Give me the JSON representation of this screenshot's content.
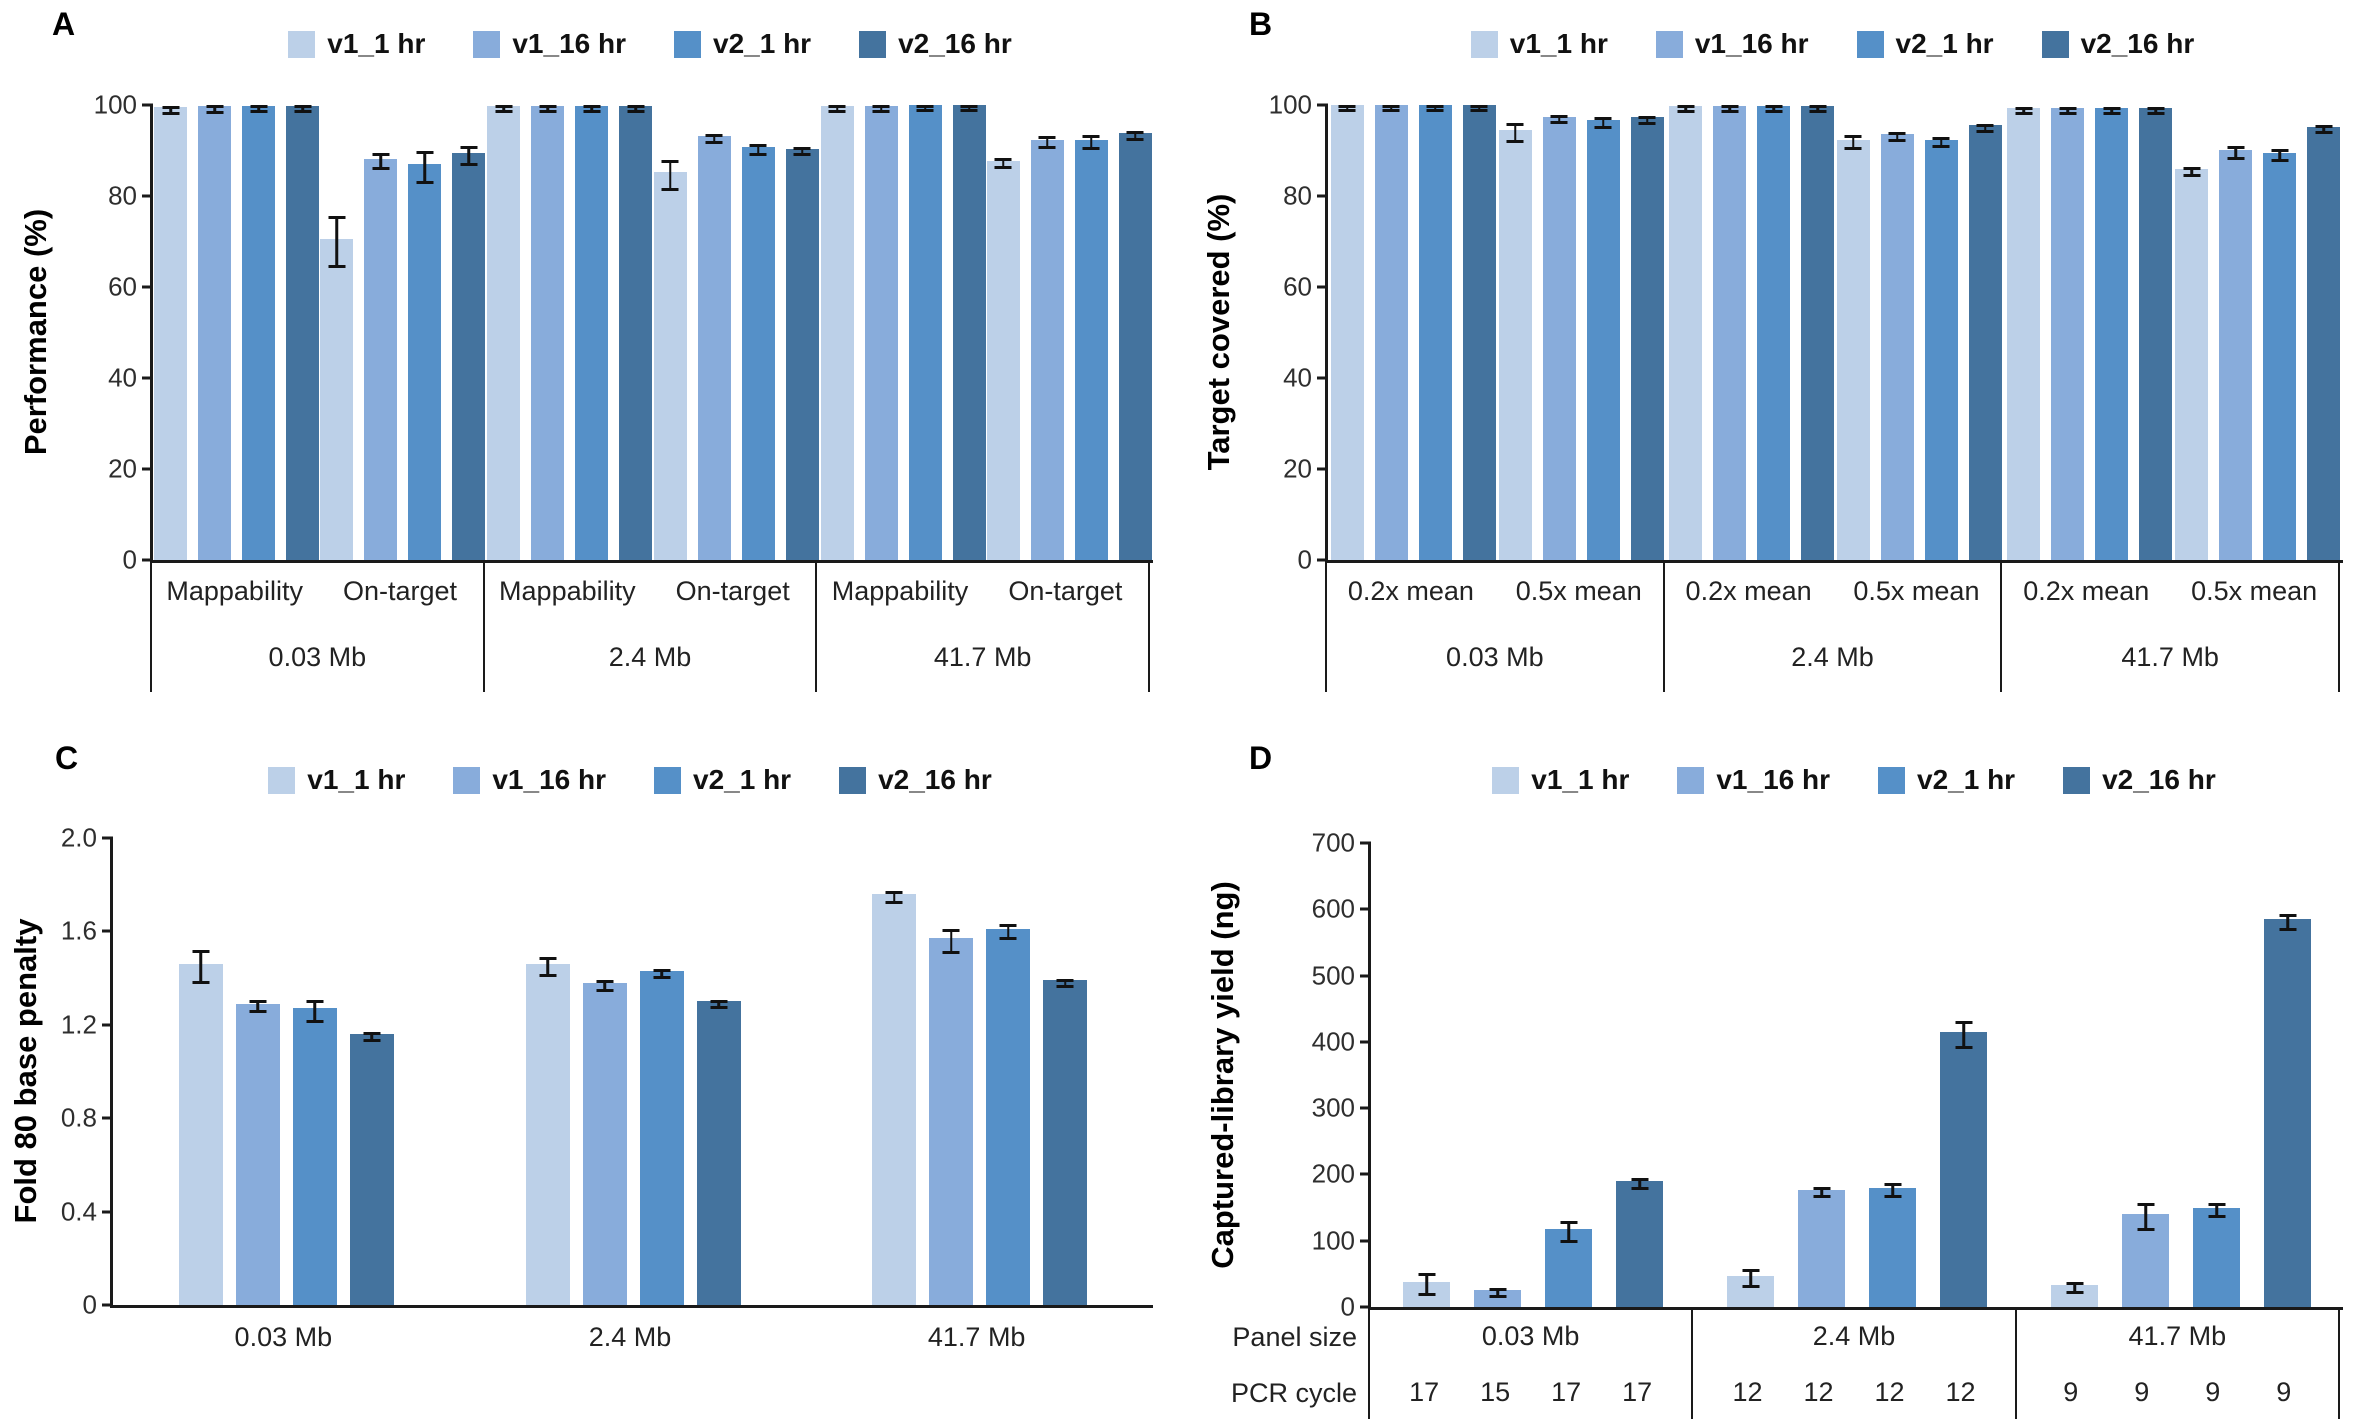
{
  "figure": {
    "background": "#ffffff",
    "error_bar_color": "#111111"
  },
  "series": [
    {
      "name": "v1_1 hr",
      "color": "#bcd0e8"
    },
    {
      "name": "v1_16 hr",
      "color": "#88acdb"
    },
    {
      "name": "v2_1 hr",
      "color": "#5590c8"
    },
    {
      "name": "v2_16 hr",
      "color": "#44739e"
    }
  ],
  "chart_data": [
    {
      "letter": "A",
      "type": "bar",
      "y_axis_title": "Performance (%)",
      "ylim": [
        0,
        100
      ],
      "yticks": [
        "0",
        "20",
        "40",
        "60",
        "80",
        "100"
      ],
      "legend_position": "top-center",
      "grid": false,
      "panels": [
        {
          "label": "0.03 Mb",
          "groups": [
            {
              "label": "Mappability",
              "values": [
                99.5,
                99.7,
                99.8,
                99.8
              ],
              "errors": [
                0.3,
                0.3,
                0.3,
                0.3
              ]
            },
            {
              "label": "On-target",
              "values": [
                70.5,
                88.2,
                87.0,
                89.5
              ],
              "errors": [
                5.0,
                1.2,
                3.0,
                1.5
              ]
            }
          ]
        },
        {
          "label": "2.4 Mb",
          "groups": [
            {
              "label": "Mappability",
              "values": [
                99.7,
                99.8,
                99.8,
                99.8
              ],
              "errors": [
                0.2,
                0.2,
                0.2,
                0.2
              ]
            },
            {
              "label": "On-target",
              "values": [
                85.2,
                93.2,
                90.8,
                90.4
              ],
              "errors": [
                2.8,
                0.5,
                0.6,
                0.4
              ]
            }
          ]
        },
        {
          "label": "41.7 Mb",
          "groups": [
            {
              "label": "Mappability",
              "values": [
                99.8,
                99.8,
                99.9,
                99.9
              ],
              "errors": [
                0.2,
                0.2,
                0.2,
                0.2
              ]
            },
            {
              "label": "On-target",
              "values": [
                87.8,
                92.4,
                92.4,
                93.8
              ],
              "errors": [
                0.6,
                0.8,
                1.0,
                0.4
              ]
            }
          ]
        }
      ]
    },
    {
      "letter": "B",
      "type": "bar",
      "y_axis_title": "Target covered (%)",
      "ylim": [
        0,
        100
      ],
      "yticks": [
        "0",
        "20",
        "40",
        "60",
        "80",
        "100"
      ],
      "legend_position": "top-center",
      "grid": false,
      "panels": [
        {
          "label": "0.03 Mb",
          "groups": [
            {
              "label": "0.2x mean",
              "values": [
                99.9,
                99.9,
                99.9,
                99.9
              ],
              "errors": [
                0.15,
                0.15,
                0.15,
                0.15
              ]
            },
            {
              "label": "0.5x mean",
              "values": [
                94.5,
                97.4,
                96.7,
                97.3
              ],
              "errors": [
                1.6,
                0.3,
                0.6,
                0.3
              ]
            }
          ]
        },
        {
          "label": "2.4 Mb",
          "groups": [
            {
              "label": "0.2x mean",
              "values": [
                99.8,
                99.8,
                99.8,
                99.8
              ],
              "errors": [
                0.15,
                0.15,
                0.15,
                0.15
              ]
            },
            {
              "label": "0.5x mean",
              "values": [
                92.4,
                93.6,
                92.4,
                95.5
              ],
              "errors": [
                1.0,
                0.4,
                0.5,
                0.3
              ]
            }
          ]
        },
        {
          "label": "41.7 Mb",
          "groups": [
            {
              "label": "0.2x mean",
              "values": [
                99.3,
                99.4,
                99.3,
                99.4
              ],
              "errors": [
                0.2,
                0.2,
                0.2,
                0.2
              ]
            },
            {
              "label": "0.5x mean",
              "values": [
                85.9,
                90.1,
                89.5,
                95.2
              ],
              "errors": [
                0.5,
                0.8,
                0.8,
                0.3
              ]
            }
          ]
        }
      ]
    },
    {
      "letter": "C",
      "type": "bar",
      "y_axis_title": "Fold 80 base penalty",
      "ylim": [
        0,
        2.0
      ],
      "yticks": [
        "0",
        "0.4",
        "0.8",
        "1.2",
        "1.6",
        "2.0"
      ],
      "legend_position": "top-center",
      "grid": false,
      "panels": [
        {
          "label": "0.03 Mb",
          "groups": [
            {
              "label": "",
              "values": [
                1.46,
                1.29,
                1.27,
                1.16
              ],
              "errors": [
                0.06,
                0.015,
                0.035,
                0.008
              ]
            }
          ]
        },
        {
          "label": "2.4 Mb",
          "groups": [
            {
              "label": "",
              "values": [
                1.46,
                1.38,
                1.43,
                1.3
              ],
              "errors": [
                0.03,
                0.012,
                0.008,
                0.006
              ]
            }
          ]
        },
        {
          "label": "41.7 Mb",
          "groups": [
            {
              "label": "",
              "values": [
                1.76,
                1.57,
                1.61,
                1.39
              ],
              "errors": [
                0.015,
                0.04,
                0.02,
                0.006
              ]
            }
          ]
        }
      ]
    },
    {
      "letter": "D",
      "type": "bar",
      "y_axis_title": "Captured-library yield (ng)",
      "ylim": [
        0,
        700
      ],
      "yticks": [
        "0",
        "100",
        "200",
        "300",
        "400",
        "500",
        "600",
        "700"
      ],
      "legend_position": "top-center",
      "grid": false,
      "row_labels": [
        "Panel size",
        "PCR cycle"
      ],
      "panels": [
        {
          "label": "0.03 Mb",
          "pcr_cycles": [
            "17",
            "15",
            "17",
            "17"
          ],
          "groups": [
            {
              "label": "",
              "values": [
                38,
                25,
                118,
                190
              ],
              "errors": [
                13,
                3,
                12,
                5
              ]
            }
          ]
        },
        {
          "label": "2.4 Mb",
          "pcr_cycles": [
            "12",
            "12",
            "12",
            "12"
          ],
          "groups": [
            {
              "label": "",
              "values": [
                47,
                177,
                180,
                415
              ],
              "errors": [
                10,
                4,
                7,
                17
              ]
            }
          ]
        },
        {
          "label": "41.7 Mb",
          "pcr_cycles": [
            "9",
            "9",
            "9",
            "9"
          ],
          "groups": [
            {
              "label": "",
              "values": [
                33,
                140,
                150,
                585
              ],
              "errors": [
                5,
                17,
                7,
                8
              ]
            }
          ]
        }
      ]
    }
  ]
}
